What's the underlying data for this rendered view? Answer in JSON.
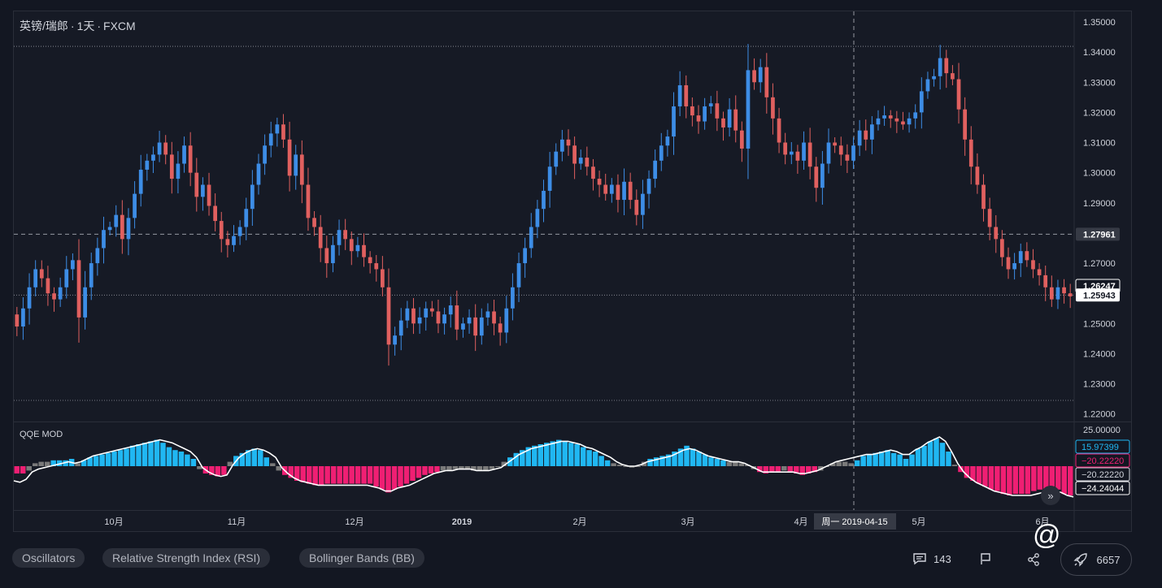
{
  "header": {
    "symbol": "英镑/瑞郎",
    "interval": "1天",
    "source": "FXCM",
    "separator": "·"
  },
  "indicator": {
    "name": "QQE MOD"
  },
  "colors": {
    "background": "#161a25",
    "up_candle": "#3d8de6",
    "down_candle": "#e0605f",
    "qqe_blue": "#20b7f2",
    "qqe_pink": "#ef1f73",
    "qqe_gray": "#7a7a7a",
    "qqe_line": "#ffffff"
  },
  "chart_data": [
    {
      "type": "candlestick",
      "title": "英镑/瑞郎 · 1天 · FXCM",
      "y_axis_ticks": [
        "1.35000",
        "1.34000",
        "1.33000",
        "1.32000",
        "1.31000",
        "1.30000",
        "1.29000",
        "1.28000",
        "1.27000",
        "1.26000",
        "1.25000",
        "1.24000",
        "1.23000",
        "1.22000"
      ],
      "ylim": [
        1.2175,
        1.3535
      ],
      "x_axis_ticks": [
        "10月",
        "11月",
        "12月",
        "2019",
        "2月",
        "3月",
        "4月",
        "5月",
        "6月"
      ],
      "crosshair_date": "周一  2019-04-15",
      "price_labels": [
        {
          "text": "1.27961",
          "value": 1.27961,
          "style": "crosshair"
        },
        {
          "text": "1.26247",
          "value": 1.26247,
          "style": "outline"
        },
        {
          "text": "1.25943",
          "value": 1.25943,
          "style": "filled"
        }
      ],
      "horizontal_lines": [
        1.3419,
        1.25943,
        1.2245
      ],
      "closes": [
        1.249,
        1.255,
        1.262,
        1.268,
        1.265,
        1.26,
        1.258,
        1.262,
        1.268,
        1.271,
        1.252,
        1.262,
        1.27,
        1.275,
        1.281,
        1.282,
        1.286,
        1.278,
        1.285,
        1.293,
        1.301,
        1.304,
        1.306,
        1.31,
        1.306,
        1.298,
        1.303,
        1.309,
        1.3,
        1.292,
        1.296,
        1.289,
        1.284,
        1.278,
        1.276,
        1.279,
        1.282,
        1.288,
        1.296,
        1.303,
        1.309,
        1.313,
        1.316,
        1.311,
        1.299,
        1.306,
        1.296,
        1.285,
        1.282,
        1.275,
        1.27,
        1.276,
        1.281,
        1.278,
        1.274,
        1.276,
        1.272,
        1.27,
        1.268,
        1.262,
        1.243,
        1.246,
        1.251,
        1.255,
        1.25,
        1.252,
        1.255,
        1.254,
        1.25,
        1.253,
        1.256,
        1.248,
        1.25,
        1.252,
        1.246,
        1.252,
        1.254,
        1.25,
        1.247,
        1.255,
        1.262,
        1.27,
        1.275,
        1.282,
        1.288,
        1.294,
        1.302,
        1.307,
        1.311,
        1.309,
        1.303,
        1.305,
        1.302,
        1.298,
        1.296,
        1.293,
        1.296,
        1.291,
        1.297,
        1.291,
        1.286,
        1.293,
        1.298,
        1.304,
        1.309,
        1.312,
        1.322,
        1.329,
        1.322,
        1.319,
        1.317,
        1.322,
        1.323,
        1.318,
        1.315,
        1.321,
        1.314,
        1.308,
        1.334,
        1.33,
        1.335,
        1.325,
        1.318,
        1.31,
        1.306,
        1.307,
        1.304,
        1.31,
        1.302,
        1.295,
        1.303,
        1.31,
        1.309,
        1.306,
        1.304,
        1.309,
        1.314,
        1.311,
        1.316,
        1.318,
        1.319,
        1.318,
        1.317,
        1.316,
        1.318,
        1.32,
        1.327,
        1.331,
        1.332,
        1.338,
        1.333,
        1.331,
        1.321,
        1.311,
        1.302,
        1.296,
        1.288,
        1.282,
        1.278,
        1.272,
        1.268,
        1.27,
        1.274,
        1.271,
        1.268,
        1.266,
        1.262,
        1.258,
        1.262,
        1.26,
        1.259
      ],
      "qqe_ylim": [
        -30,
        30
      ],
      "qqe_values": [
        -5,
        -5,
        -3,
        2,
        3,
        3,
        4,
        4,
        4,
        5,
        2,
        4,
        6,
        7,
        8,
        9,
        10,
        11,
        12,
        14,
        15,
        16,
        17,
        18,
        16,
        13,
        11,
        10,
        8,
        5,
        -2,
        -5,
        -6,
        -7,
        -6,
        3,
        7,
        9,
        11,
        12,
        11,
        6,
        2,
        -3,
        -6,
        -8,
        -10,
        -11,
        -12,
        -13,
        -13,
        -12,
        -12,
        -12,
        -12,
        -12,
        -12,
        -12,
        -12,
        -14,
        -16,
        -18,
        -16,
        -14,
        -12,
        -10,
        -8,
        -6,
        -5,
        -4,
        -3,
        -3,
        -2,
        -2,
        -2,
        -3,
        -3,
        -3,
        -2,
        0,
        3,
        6,
        9,
        11,
        13,
        14,
        15,
        16,
        17,
        18,
        17,
        16,
        15,
        13,
        11,
        10,
        7,
        4,
        2,
        1,
        0,
        -1,
        0,
        3,
        5,
        6,
        7,
        8,
        10,
        12,
        14,
        12,
        10,
        8,
        6,
        5,
        4,
        3,
        3,
        2,
        1,
        -2,
        -4,
        -5,
        -4,
        -4,
        -3,
        -4,
        -5,
        -6,
        -5,
        -4,
        -3,
        0,
        2,
        3,
        3,
        2,
        4,
        7,
        8,
        9,
        10,
        11,
        9,
        8,
        5,
        8,
        12,
        14,
        17,
        19,
        16,
        10,
        1,
        -4,
        -8,
        -10,
        -12,
        -14,
        -16,
        -17,
        -19,
        -20,
        -19,
        -19,
        -19,
        -17,
        -16,
        -16,
        -14,
        -16,
        -19,
        -20
      ],
      "qqe_line": [
        -10,
        -11,
        -9,
        -4,
        -2,
        -1,
        0,
        1,
        2,
        3,
        2,
        3,
        5,
        7,
        8,
        9,
        10,
        11,
        12,
        13,
        14,
        15,
        16,
        17,
        18,
        17,
        16,
        14,
        12,
        10,
        6,
        -1,
        -4,
        -6,
        -7,
        -6,
        1,
        6,
        9,
        11,
        12,
        11,
        9,
        6,
        -1,
        -5,
        -8,
        -10,
        -11,
        -12,
        -13,
        -13,
        -13,
        -13,
        -13,
        -13,
        -13,
        -13,
        -13,
        -14,
        -15,
        -17,
        -17,
        -15,
        -14,
        -13,
        -11,
        -9,
        -7,
        -5,
        -4,
        -3,
        -3,
        -2,
        -2,
        -2,
        -3,
        -3,
        -3,
        -2,
        -1,
        2,
        5,
        8,
        10,
        12,
        13,
        14,
        15,
        16,
        17,
        17,
        16,
        15,
        13,
        12,
        10,
        8,
        6,
        3,
        1,
        0,
        0,
        1,
        3,
        4,
        5,
        6,
        7,
        9,
        11,
        12,
        11,
        9,
        7,
        6,
        5,
        4,
        3,
        3,
        2,
        0,
        -2,
        -4,
        -4,
        -4,
        -4,
        -4,
        -4,
        -5,
        -5,
        -4,
        -3,
        -1,
        1,
        3,
        4,
        5,
        6,
        7,
        8,
        8,
        9,
        10,
        11,
        10,
        8,
        8,
        11,
        13,
        16,
        18,
        20,
        17,
        10,
        2,
        -4,
        -8,
        -11,
        -13,
        -15,
        -17,
        -18,
        -19,
        -20,
        -20,
        -20,
        -20,
        -19,
        -18,
        -17,
        -17,
        -18,
        -20,
        -21
      ],
      "qqe_axis_ticks": [
        "25.00000"
      ],
      "qqe_labels": [
        {
          "text": "15.97399",
          "value": 15.97399,
          "style": "blue"
        },
        {
          "text": "−20.22220",
          "value": -20.2222,
          "style": "pink"
        },
        {
          "text": "−20.22220",
          "value": -20.2222,
          "style": "outline"
        },
        {
          "text": "−24.24044",
          "value": -24.24044,
          "style": "white"
        }
      ]
    }
  ],
  "tags": [
    "Oscillators",
    "Relative Strength Index (RSI)",
    "Bollinger Bands (BB)"
  ],
  "footer": {
    "comments": "143",
    "boosts": "6657"
  }
}
